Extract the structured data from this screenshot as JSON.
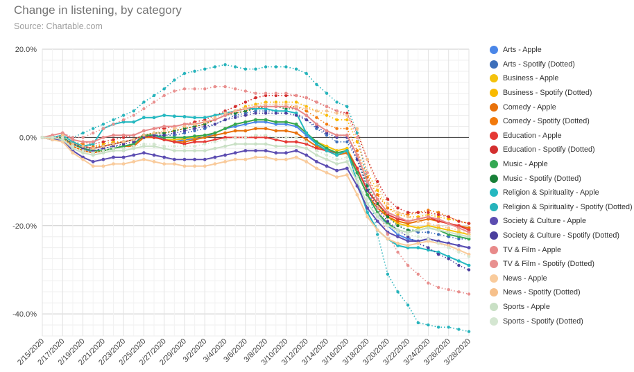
{
  "title": "Change in listening, by category",
  "subtitle": "Source: Chartable.com",
  "chart_data": {
    "type": "line",
    "title": "Change in listening, by category",
    "subtitle": "Source: Chartable.com",
    "xlabel": "",
    "ylabel": "",
    "x": [
      "2/15/2020",
      "2/16/2020",
      "2/17/2020",
      "2/18/2020",
      "2/19/2020",
      "2/20/2020",
      "2/21/2020",
      "2/22/2020",
      "2/23/2020",
      "2/24/2020",
      "2/25/2020",
      "2/26/2020",
      "2/27/2020",
      "2/28/2020",
      "2/29/2020",
      "3/1/2020",
      "3/2/2020",
      "3/3/2020",
      "3/4/2020",
      "3/5/2020",
      "3/6/2020",
      "3/7/2020",
      "3/8/2020",
      "3/9/2020",
      "3/10/2020",
      "3/11/2020",
      "3/12/2020",
      "3/13/2020",
      "3/14/2020",
      "3/15/2020",
      "3/16/2020",
      "3/17/2020",
      "3/18/2020",
      "3/19/2020",
      "3/20/2020",
      "3/21/2020",
      "3/22/2020",
      "3/23/2020",
      "3/24/2020",
      "3/25/2020",
      "3/26/2020",
      "3/27/2020",
      "3/28/2020"
    ],
    "x_tick_labels": [
      "2/15/2020",
      "2/17/2020",
      "2/19/2020",
      "2/21/2020",
      "2/23/2020",
      "2/25/2020",
      "2/27/2020",
      "2/29/2020",
      "3/2/2020",
      "3/4/2020",
      "3/6/2020",
      "3/8/2020",
      "3/10/2020",
      "3/12/2020",
      "3/14/2020",
      "3/16/2020",
      "3/18/2020",
      "3/20/2020",
      "3/22/2020",
      "3/24/2020",
      "3/26/2020",
      "3/28/2020"
    ],
    "y_tick_labels": [
      "20.0%",
      "0.0%",
      "-20.0%",
      "-40.0%"
    ],
    "y_unit": "%",
    "ylim": [
      -45,
      20
    ],
    "grid": true,
    "legend_position": "right",
    "series": [
      {
        "name": "Arts - Apple",
        "color": "#4a86e8",
        "style": "solid",
        "values": [
          0,
          -0.5,
          0,
          -1.5,
          -2.5,
          -3.5,
          -3,
          -2.5,
          -2,
          -1.5,
          0.5,
          0.5,
          -0.5,
          -1,
          -0.5,
          -0.3,
          0,
          1,
          2,
          2.5,
          3,
          3.5,
          3.5,
          3,
          3,
          2.5,
          0.5,
          -1.5,
          -3,
          -4,
          -3.5,
          -8,
          -13,
          -17,
          -20,
          -22,
          -23,
          -23.5,
          -23,
          -23.5,
          -24,
          -24.5,
          -25
        ]
      },
      {
        "name": "Arts - Spotify (Dotted)",
        "color": "#3d6fba",
        "style": "dotted",
        "values": [
          0,
          0,
          0.5,
          -1,
          -2,
          -3,
          -2.5,
          -2,
          -2,
          -1.5,
          0,
          0.5,
          0.5,
          0.5,
          1,
          1.5,
          2,
          3,
          4,
          5,
          5.5,
          6,
          6,
          6,
          6,
          5.5,
          4,
          2,
          0.5,
          -1,
          -1,
          -5,
          -11,
          -15,
          -18,
          -20,
          -21,
          -21.5,
          -21.5,
          -22,
          -22.5,
          -23,
          -23
        ]
      },
      {
        "name": "Business - Apple",
        "color": "#f4c20d",
        "style": "solid",
        "values": [
          0,
          -0.5,
          0,
          -1.5,
          -2.5,
          -3,
          -3,
          -2.5,
          -2,
          -1.5,
          0.3,
          0,
          -0.5,
          -0.5,
          -0.3,
          0,
          0.5,
          1,
          2,
          3,
          3.5,
          4,
          4,
          3.5,
          3.5,
          3,
          1,
          -1,
          -2,
          -3,
          -2.5,
          -7,
          -12,
          -15,
          -18,
          -19.5,
          -20,
          -20.5,
          -20,
          -20.5,
          -21,
          -21.5,
          -22
        ]
      },
      {
        "name": "Business - Spotify (Dotted)",
        "color": "#f9ba00",
        "style": "dotted",
        "values": [
          0,
          0,
          0.5,
          -1,
          -1.5,
          -2,
          -1.5,
          -1,
          -1,
          -0.5,
          0.5,
          1,
          1,
          1.5,
          2,
          2.5,
          3,
          4,
          5,
          6,
          7,
          7.5,
          8,
          8,
          8,
          8,
          7,
          6,
          5,
          4,
          4,
          -1,
          -8,
          -12,
          -16,
          -17.5,
          -18,
          -18,
          -17.5,
          -18,
          -18.5,
          -19,
          -19.5
        ]
      },
      {
        "name": "Comedy - Apple",
        "color": "#e8710a",
        "style": "solid",
        "values": [
          0,
          -0.5,
          0,
          -2,
          -3,
          -3.5,
          -3,
          -2.5,
          -2,
          -2,
          0,
          0,
          -0.5,
          -1,
          -1,
          -0.5,
          0,
          0.5,
          1,
          1.5,
          1.5,
          2,
          2,
          1.5,
          1.5,
          1,
          -0.5,
          -2,
          -3,
          -4,
          -3.5,
          -8,
          -13,
          -16,
          -18,
          -19,
          -19.5,
          -19,
          -18.5,
          -19,
          -19.5,
          -20,
          -20.5
        ]
      },
      {
        "name": "Comedy - Spotify (Dotted)",
        "color": "#f27a0c",
        "style": "dotted",
        "values": [
          0,
          0,
          0.5,
          -1,
          -1.5,
          -2,
          -2,
          -1.5,
          -1,
          -0.5,
          0.5,
          1,
          1,
          1.5,
          2,
          2.5,
          3,
          4,
          5,
          5.5,
          6,
          6.5,
          7,
          7,
          7,
          7,
          6,
          4.5,
          3,
          2,
          2,
          -3,
          -9,
          -13,
          -16,
          -17,
          -17.5,
          -17,
          -16.5,
          -17,
          -18,
          -19,
          -19.5
        ]
      },
      {
        "name": "Education - Apple",
        "color": "#e53935",
        "style": "solid",
        "values": [
          0,
          0,
          0,
          -1.5,
          -2,
          -2.5,
          -2,
          -1.5,
          -1,
          -0.5,
          0.5,
          0,
          -0.5,
          -1,
          -1.5,
          -1,
          -1,
          -0.5,
          0,
          0,
          0,
          0,
          0,
          -0.5,
          -1,
          -1,
          -1.5,
          -2.5,
          -3,
          -3.5,
          -3,
          -7,
          -12,
          -15,
          -17.5,
          -18.5,
          -19,
          -18.5,
          -18,
          -19,
          -19.5,
          -20,
          -21
        ]
      },
      {
        "name": "Education - Spotify (Dotted)",
        "color": "#d32f2f",
        "style": "dotted",
        "values": [
          0,
          0.5,
          1,
          -0.5,
          -1,
          -1.5,
          -1,
          -0.5,
          0,
          0.5,
          1.5,
          2,
          2,
          2.5,
          3,
          3.5,
          4,
          5,
          6,
          7,
          8,
          9,
          9.5,
          9.5,
          9.5,
          9.5,
          9,
          8,
          7,
          6,
          5.5,
          1,
          -5,
          -10,
          -14,
          -16,
          -17,
          -17,
          -17,
          -17.5,
          -18,
          -19,
          -19.5
        ]
      },
      {
        "name": "Music - Apple",
        "color": "#34a853",
        "style": "solid",
        "values": [
          0,
          -0.5,
          0,
          -1.5,
          -2.5,
          -3,
          -3,
          -2.5,
          -2,
          -1.5,
          0.5,
          0.5,
          0,
          0,
          0,
          0.3,
          0.5,
          1,
          2,
          3,
          3.5,
          4,
          4,
          3.5,
          3.5,
          3,
          1,
          -1,
          -2.5,
          -3.5,
          -3,
          -8,
          -13,
          -17,
          -19.5,
          -21,
          -21.5,
          -21,
          -20.5,
          -21,
          -22,
          -22.5,
          -23
        ]
      },
      {
        "name": "Music - Spotify (Dotted)",
        "color": "#188038",
        "style": "dotted",
        "values": [
          0,
          0,
          0.5,
          -1,
          -2,
          -2.5,
          -2,
          -1.5,
          -1,
          -0.5,
          0.5,
          1,
          1,
          1.5,
          2,
          2.5,
          3,
          4,
          5,
          5.5,
          6,
          6.5,
          7,
          7,
          6.5,
          6.5,
          5,
          3,
          1.5,
          0.5,
          0.5,
          -4,
          -11,
          -15,
          -18,
          -20,
          -21,
          -21,
          -20.5,
          -21,
          -21.5,
          -22,
          -22.5
        ]
      },
      {
        "name": "Religion & Spirituality - Apple",
        "color": "#24b8c0",
        "style": "solid",
        "values": [
          0,
          0,
          0.5,
          -1,
          -2,
          -1.5,
          2,
          3,
          3.5,
          3.5,
          4.5,
          4.5,
          5,
          4.8,
          4.7,
          4.5,
          4.5,
          5,
          5.5,
          6,
          6.5,
          6.5,
          6.5,
          6,
          6,
          5.5,
          1,
          -1.5,
          -3,
          -4,
          -3,
          -10,
          -17,
          -21,
          -23,
          -24.5,
          -25,
          -25,
          -25.5,
          -26,
          -27,
          -28,
          -29
        ]
      },
      {
        "name": "Religion & Spirituality - Spotify (Dotted)",
        "color": "#26b3bb",
        "style": "dotted",
        "values": [
          0,
          0.5,
          1,
          0,
          1,
          2,
          3,
          4,
          5,
          6,
          8,
          9.5,
          11,
          13,
          14.5,
          15,
          15.5,
          16,
          16.5,
          16,
          15.5,
          15.5,
          16,
          16,
          16,
          15.5,
          14.5,
          12,
          10,
          8,
          7,
          1,
          -10,
          -22,
          -31,
          -35,
          -38,
          -42,
          -42.5,
          -43,
          -43,
          -43.5,
          -44
        ]
      },
      {
        "name": "Society & Culture - Apple",
        "color": "#5c4db1",
        "style": "solid",
        "values": [
          0,
          -0.5,
          -0.5,
          -3,
          -4.5,
          -5.5,
          -5,
          -4.5,
          -4.5,
          -4,
          -3.5,
          -4,
          -4.5,
          -5,
          -5,
          -5,
          -5,
          -4.5,
          -4,
          -3.5,
          -3,
          -3,
          -3,
          -3.5,
          -3.5,
          -3,
          -4,
          -5.5,
          -6.5,
          -7.5,
          -7,
          -11,
          -16,
          -19,
          -21.5,
          -22.5,
          -23.5,
          -23.5,
          -23,
          -23.5,
          -24,
          -24.5,
          -25
        ]
      },
      {
        "name": "Society & Culture - Spotify (Dotted)",
        "color": "#4b3f9e",
        "style": "dotted",
        "values": [
          0,
          0,
          0,
          -1.5,
          -2.5,
          -3,
          -2.5,
          -2,
          -1.5,
          -1,
          0,
          0.5,
          0.5,
          1,
          1.5,
          2,
          2.5,
          3,
          4,
          4.5,
          5,
          5.5,
          5.5,
          5.5,
          5.5,
          5,
          4,
          2.5,
          1,
          0,
          0,
          -5,
          -12,
          -16,
          -19,
          -21,
          -22.5,
          -24,
          -25,
          -26.5,
          -27.5,
          -29,
          -30
        ]
      },
      {
        "name": "TV & Film - Apple",
        "color": "#e88a8a",
        "style": "solid",
        "values": [
          0,
          0.5,
          1,
          -0.5,
          -1,
          -1,
          0,
          0.5,
          0.5,
          0.5,
          1.5,
          2,
          2.5,
          2.5,
          3,
          3,
          3.5,
          4,
          5,
          6,
          6.5,
          7,
          7,
          7,
          7,
          6.5,
          5,
          3,
          1.5,
          0.5,
          0.5,
          -4,
          -10,
          -14,
          -17,
          -18,
          -19,
          -18.5,
          -18,
          -18.5,
          -19.5,
          -20.5,
          -21.5
        ]
      },
      {
        "name": "TV & Film - Spotify (Dotted)",
        "color": "#e8908f",
        "style": "dotted",
        "values": [
          0,
          0.5,
          1,
          0,
          0,
          1,
          2,
          3,
          4,
          5,
          6.5,
          8,
          9.5,
          10.5,
          11,
          11,
          11,
          11.5,
          11.5,
          11,
          10.5,
          10,
          10,
          10,
          10,
          9.5,
          9,
          8,
          7,
          6,
          5,
          0,
          -8,
          -16,
          -22,
          -26,
          -29,
          -31,
          -33,
          -34,
          -34.5,
          -35,
          -35.5
        ]
      },
      {
        "name": "News - Apple",
        "color": "#f9cb9c",
        "style": "solid",
        "values": [
          0,
          -0.5,
          -1,
          -3.5,
          -5,
          -6.5,
          -6.5,
          -6,
          -6,
          -5.5,
          -5,
          -5.5,
          -6,
          -6,
          -6.5,
          -6.5,
          -6.5,
          -6,
          -5.5,
          -5,
          -5,
          -4.5,
          -4.5,
          -5,
          -5,
          -4.5,
          -5.5,
          -7,
          -8,
          -9,
          -8.5,
          -13,
          -18,
          -21,
          -23,
          -24,
          -24.5,
          -24,
          -23.5,
          -24,
          -24.5,
          -25.5,
          -26.5
        ]
      },
      {
        "name": "News - Spotify (Dotted)",
        "color": "#f6c08b",
        "style": "dotted",
        "values": [
          0,
          0,
          0.5,
          -1.5,
          -2,
          -2.5,
          -2,
          -1.5,
          -1,
          -0.5,
          0.5,
          1,
          1.5,
          2,
          2.5,
          3,
          3.5,
          4.5,
          5.5,
          6,
          6.5,
          7,
          7.5,
          7.5,
          7.5,
          7,
          6.5,
          6,
          6,
          5.5,
          5,
          2,
          -5,
          -11,
          -15,
          -17,
          -18,
          -19,
          -19.5,
          -20,
          -20.5,
          -21,
          -22
        ]
      },
      {
        "name": "Sports - Apple",
        "color": "#c9e0c5",
        "style": "solid",
        "values": [
          0,
          0,
          -0.5,
          -2.5,
          -3.5,
          -4,
          -3.5,
          -3,
          -3,
          -2.5,
          -2,
          -2,
          -2.5,
          -3,
          -3,
          -3,
          -3,
          -2.5,
          -2,
          -1.5,
          -1.5,
          -1.5,
          -1.5,
          -2,
          -2,
          -2,
          -2.5,
          -4,
          -5,
          -6,
          -5.5,
          -10,
          -15,
          -18,
          -20,
          -21,
          -21.5,
          -21,
          -20.5,
          -21,
          -21.5,
          -22,
          -22.5
        ]
      },
      {
        "name": "Sports - Spotify (Dotted)",
        "color": "#d4e6d1",
        "style": "dotted",
        "values": [
          0,
          0,
          0,
          -2,
          -3,
          -3.5,
          -3,
          -2.5,
          -2.5,
          -2,
          -1.5,
          -1.5,
          -2,
          -2,
          -2,
          -2,
          -1.5,
          -1,
          -0.5,
          0,
          0,
          0.5,
          0.5,
          0,
          0,
          0,
          -1,
          -3,
          -4,
          -5,
          -4.5,
          -9,
          -14,
          -17.5,
          -20,
          -21.5,
          -22,
          -22.5,
          -23,
          -24,
          -25,
          -26,
          -27
        ]
      }
    ]
  }
}
